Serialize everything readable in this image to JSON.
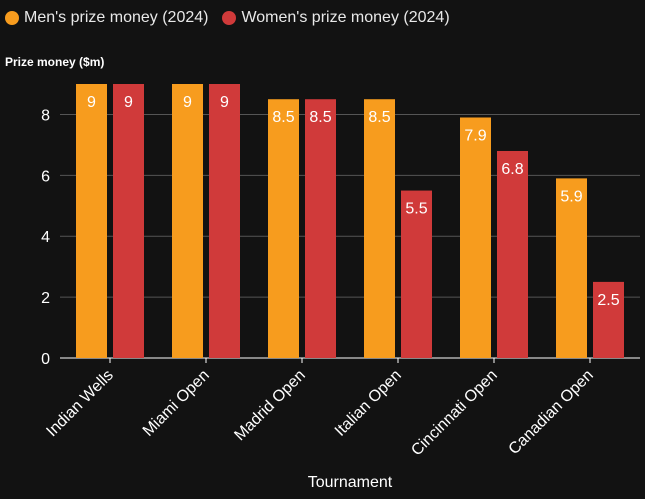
{
  "chart_data": {
    "type": "bar",
    "title": "",
    "xlabel": "Tournament",
    "ylabel": "Prize money ($m)",
    "categories": [
      "Indian Wells",
      "Miami Open",
      "Madrid Open",
      "Italian Open",
      "Cincinnati Open",
      "Canadian Open"
    ],
    "series": [
      {
        "name": "Men's prize money (2024)",
        "color": "#f79c1e",
        "values": [
          9,
          9,
          8.5,
          8.5,
          7.9,
          5.9
        ]
      },
      {
        "name": "Women's prize money (2024)",
        "color": "#d03a3a",
        "values": [
          9,
          9,
          8.5,
          5.5,
          6.8,
          2.5
        ]
      }
    ],
    "ylim": [
      0,
      9
    ],
    "yticks": [
      0,
      2,
      4,
      6,
      8
    ],
    "grid": true,
    "legend": "top-left"
  }
}
